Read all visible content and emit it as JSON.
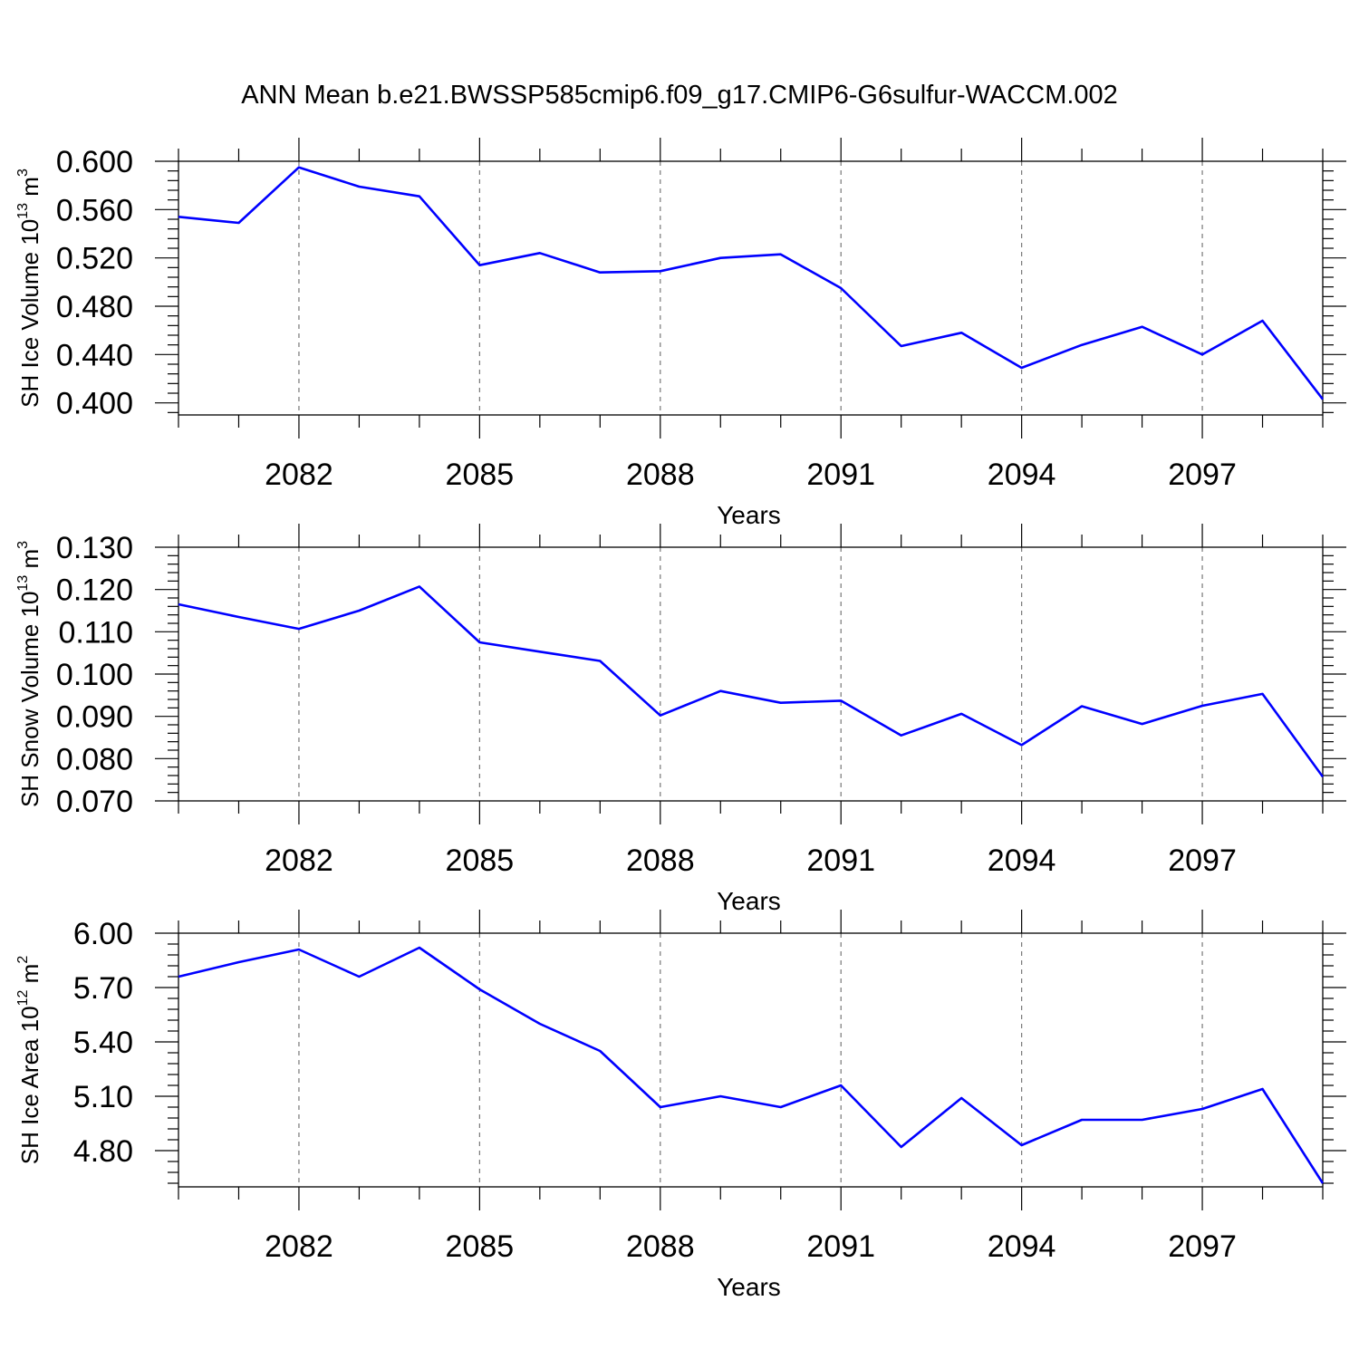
{
  "title": "ANN Mean b.e21.BWSSP585cmip6.f09_g17.CMIP6-G6sulfur-WACCM.002",
  "chart_data": [
    {
      "type": "line",
      "xlabel": "Years",
      "ylabel": {
        "text": "SH Ice Volume 10",
        "sup": "13",
        "unit": " m",
        "unit_sup": "3"
      },
      "xlim": [
        2080,
        2099
      ],
      "ylim": [
        0.39,
        0.6
      ],
      "xticks": [
        2082,
        2085,
        2088,
        2091,
        2094,
        2097
      ],
      "yticks": [
        0.4,
        0.44,
        0.48,
        0.52,
        0.56,
        0.6
      ],
      "ytick_labels": [
        "0.400",
        "0.440",
        "0.480",
        "0.520",
        "0.560",
        "0.600"
      ],
      "x": [
        2080,
        2081,
        2082,
        2083,
        2084,
        2085,
        2086,
        2087,
        2088,
        2089,
        2090,
        2091,
        2092,
        2093,
        2094,
        2095,
        2096,
        2097,
        2098,
        2099
      ],
      "series": [
        {
          "color": "#0000ff",
          "values": [
            0.554,
            0.549,
            0.595,
            0.579,
            0.571,
            0.514,
            0.524,
            0.508,
            0.509,
            0.52,
            0.523,
            0.495,
            0.447,
            0.458,
            0.429,
            0.448,
            0.463,
            0.44,
            0.468,
            0.403
          ]
        }
      ],
      "grid": "vertical dashed at major x ticks"
    },
    {
      "type": "line",
      "xlabel": "Years",
      "ylabel": {
        "text": "SH Snow Volume 10",
        "sup": "13",
        "unit": " m",
        "unit_sup": "3"
      },
      "xlim": [
        2080,
        2099
      ],
      "ylim": [
        0.07,
        0.13
      ],
      "xticks": [
        2082,
        2085,
        2088,
        2091,
        2094,
        2097
      ],
      "yticks": [
        0.07,
        0.08,
        0.09,
        0.1,
        0.11,
        0.12,
        0.13
      ],
      "ytick_labels": [
        "0.070",
        "0.080",
        "0.090",
        "0.100",
        "0.110",
        "0.120",
        "0.130"
      ],
      "x": [
        2080,
        2081,
        2082,
        2083,
        2084,
        2085,
        2086,
        2087,
        2088,
        2089,
        2090,
        2091,
        2092,
        2093,
        2094,
        2095,
        2096,
        2097,
        2098,
        2099
      ],
      "series": [
        {
          "color": "#0000ff",
          "values": [
            0.1165,
            0.1135,
            0.1107,
            0.115,
            0.1207,
            0.1075,
            0.1053,
            0.1031,
            0.0902,
            0.096,
            0.0932,
            0.0937,
            0.0855,
            0.0906,
            0.0832,
            0.0924,
            0.0882,
            0.0925,
            0.0953,
            0.0757
          ]
        }
      ],
      "grid": "vertical dashed at major x ticks"
    },
    {
      "type": "line",
      "xlabel": "Years",
      "ylabel": {
        "text": "SH Ice Area 10",
        "sup": "12",
        "unit": " m",
        "unit_sup": "2"
      },
      "xlim": [
        2080,
        2099
      ],
      "ylim": [
        4.6,
        6.0
      ],
      "xticks": [
        2082,
        2085,
        2088,
        2091,
        2094,
        2097
      ],
      "yticks": [
        4.8,
        5.1,
        5.4,
        5.7,
        6.0
      ],
      "ytick_labels": [
        "4.80",
        "5.10",
        "5.40",
        "5.70",
        "6.00"
      ],
      "x": [
        2080,
        2081,
        2082,
        2083,
        2084,
        2085,
        2086,
        2087,
        2088,
        2089,
        2090,
        2091,
        2092,
        2093,
        2094,
        2095,
        2096,
        2097,
        2098,
        2099
      ],
      "series": [
        {
          "color": "#0000ff",
          "values": [
            5.76,
            5.84,
            5.91,
            5.76,
            5.92,
            5.69,
            5.5,
            5.35,
            5.04,
            5.1,
            5.04,
            5.16,
            4.82,
            5.09,
            4.83,
            4.97,
            4.97,
            5.03,
            5.14,
            4.62
          ]
        }
      ],
      "grid": "vertical dashed at major x ticks"
    }
  ]
}
